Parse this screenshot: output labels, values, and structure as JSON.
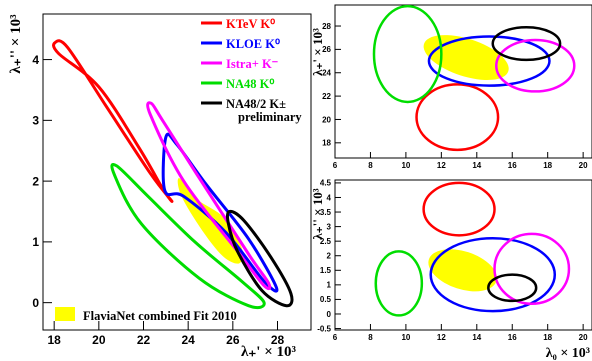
{
  "chart_data": [
    {
      "type": "scatter",
      "panel": "left",
      "xlabel": "λ₊' × 10³",
      "ylabel": "λ₊'' × 10³",
      "xlim": [
        17.5,
        29.5
      ],
      "ylim": [
        -0.45,
        4.75
      ],
      "x_ticks": [
        18,
        20,
        22,
        24,
        26,
        28
      ],
      "y_ticks": [
        0,
        1,
        2,
        3,
        4
      ],
      "grid": false,
      "legend_position": "top-right",
      "legend": [
        {
          "label": "KTeV K⁰",
          "color": "#ff0000"
        },
        {
          "label": "KLOE K⁰",
          "color": "#0000ff"
        },
        {
          "label": "Istra+ K⁻",
          "color": "#ff00ff"
        },
        {
          "label": "NA48 K⁰",
          "color": "#00dd00"
        },
        {
          "label": "NA48/2 K±",
          "color": "#000000"
        },
        {
          "label": "preliminary",
          "color": "#000000"
        }
      ],
      "fill_legend": {
        "label": "FlaviaNet combined Fit  2010",
        "color": "#ffff00"
      },
      "series": [
        {
          "name": "KTeV K⁰",
          "color": "#ff0000",
          "outline": [
            [
              18.04,
              4.28
            ],
            [
              18.6,
              4.2
            ],
            [
              20.3,
              3.25
            ],
            [
              22.3,
              2.13
            ],
            [
              23.25,
              1.68
            ],
            [
              22.9,
              1.85
            ],
            [
              21.8,
              2.55
            ],
            [
              20.0,
              3.55
            ],
            [
              18.2,
              4.1
            ]
          ]
        },
        {
          "name": "KLOE K⁰",
          "color": "#0000ff",
          "outline": [
            [
              23.0,
              2.72
            ],
            [
              23.5,
              2.6
            ],
            [
              24.8,
              1.95
            ],
            [
              26.7,
              1.05
            ],
            [
              27.95,
              0.25
            ],
            [
              27.4,
              0.35
            ],
            [
              25.7,
              1.15
            ],
            [
              23.8,
              1.75
            ],
            [
              22.95,
              1.85
            ]
          ]
        },
        {
          "name": "Istra+ K⁻",
          "color": "#ff00ff",
          "outline": [
            [
              22.35,
              3.28
            ],
            [
              22.85,
              3.0
            ],
            [
              24.5,
              2.05
            ],
            [
              26.7,
              0.8
            ],
            [
              27.6,
              0.32
            ],
            [
              27.4,
              0.28
            ],
            [
              26.2,
              0.85
            ],
            [
              23.8,
              2.0
            ],
            [
              22.3,
              3.1
            ]
          ]
        },
        {
          "name": "NA48 K⁰",
          "color": "#00dd00",
          "outline": [
            [
              20.8,
              2.25
            ],
            [
              22.2,
              1.75
            ],
            [
              24.3,
              1.0
            ],
            [
              26.4,
              0.35
            ],
            [
              27.4,
              0.0
            ],
            [
              26.7,
              -0.05
            ],
            [
              24.5,
              0.4
            ],
            [
              21.9,
              1.3
            ],
            [
              20.7,
              2.1
            ]
          ]
        },
        {
          "name": "NA48/2 K±",
          "color": "#000000",
          "outline": [
            [
              25.85,
              1.5
            ],
            [
              26.5,
              1.35
            ],
            [
              27.7,
              0.75
            ],
            [
              28.6,
              0.15
            ],
            [
              28.4,
              -0.05
            ],
            [
              27.3,
              0.2
            ],
            [
              26.2,
              0.85
            ],
            [
              25.8,
              1.3
            ]
          ]
        },
        {
          "name": "FlaviaNet combined Fit  2010",
          "color": "#ffff00",
          "outline": [
            [
              23.6,
              2.05
            ],
            [
              24.4,
              1.7
            ],
            [
              25.6,
              1.4
            ],
            [
              26.4,
              0.9
            ],
            [
              26.3,
              0.65
            ],
            [
              25.6,
              0.75
            ],
            [
              24.7,
              1.15
            ],
            [
              23.7,
              1.75
            ]
          ]
        }
      ]
    },
    {
      "type": "scatter",
      "panel": "top-right",
      "ylabel": "λ₊' × 10³",
      "xlim": [
        6,
        20.5
      ],
      "ylim": [
        16.7,
        29.8
      ],
      "x_ticks": [
        6,
        8,
        10,
        12,
        14,
        16,
        18,
        20
      ],
      "y_ticks": [
        18,
        20,
        22,
        24,
        26,
        28
      ],
      "series": [
        {
          "name": "KTeV K⁰",
          "color": "#ff0000",
          "center": [
            12.9,
            20.2
          ],
          "radii": [
            2.3,
            2.8
          ]
        },
        {
          "name": "KLOE K⁰",
          "color": "#0000ff",
          "center": [
            14.7,
            25.0
          ],
          "radii": [
            3.4,
            2.1
          ]
        },
        {
          "name": "Istra+ K⁻",
          "color": "#ff00ff",
          "center": [
            17.3,
            24.6
          ],
          "radii": [
            2.2,
            2.2
          ]
        },
        {
          "name": "NA48 K⁰",
          "color": "#00dd00",
          "center": [
            10.1,
            25.6
          ],
          "radii": [
            1.9,
            4.1
          ]
        },
        {
          "name": "NA48/2 K±",
          "color": "#000000",
          "center": [
            16.8,
            26.5
          ],
          "radii": [
            1.9,
            1.4
          ]
        },
        {
          "name": "FlaviaNet combined Fit  2010",
          "color": "#ffff00",
          "center": [
            13.4,
            25.3
          ],
          "radii": [
            2.5,
            1.6
          ]
        }
      ]
    },
    {
      "type": "scatter",
      "panel": "bottom-right",
      "xlabel": "λ₀ × 10³",
      "ylabel": "λ₊'' × 10³",
      "xlim": [
        6,
        20.5
      ],
      "ylim": [
        -0.55,
        4.6
      ],
      "x_ticks": [
        6,
        8,
        10,
        12,
        14,
        16,
        18,
        20
      ],
      "y_ticks": [
        -0.5,
        0,
        0.5,
        1,
        1.5,
        2,
        2.5,
        3,
        3.5,
        4,
        4.5
      ],
      "y_tick_labels": [
        "-0.5",
        "0",
        "0.5",
        "1",
        "1.5",
        "2",
        "2.5",
        "3",
        "3.5",
        "4",
        "4.5"
      ],
      "series": [
        {
          "name": "KTeV K⁰",
          "color": "#ff0000",
          "center": [
            13.0,
            3.6
          ],
          "radii": [
            2.0,
            0.9
          ]
        },
        {
          "name": "KLOE K⁰",
          "color": "#0000ff",
          "center": [
            14.9,
            1.35
          ],
          "radii": [
            3.5,
            1.25
          ]
        },
        {
          "name": "Istra+ K⁻",
          "color": "#ff00ff",
          "center": [
            17.1,
            1.55
          ],
          "radii": [
            2.1,
            1.2
          ]
        },
        {
          "name": "NA48 K⁰",
          "color": "#00dd00",
          "center": [
            9.6,
            1.05
          ],
          "radii": [
            1.3,
            1.1
          ]
        },
        {
          "name": "NA48/2 K±",
          "color": "#000000",
          "center": [
            16.0,
            0.9
          ],
          "radii": [
            1.35,
            0.45
          ]
        },
        {
          "name": "FlaviaNet combined Fit  2010",
          "color": "#ffff00",
          "center": [
            13.2,
            1.5
          ],
          "radii": [
            2.0,
            0.65
          ]
        }
      ]
    }
  ],
  "labels": {
    "left_ylabel": "λ₊'' × 10³",
    "left_xlabel": "λ₊' × 10³",
    "tr_ylabel": "λ₊' × 10³",
    "br_ylabel": "λ₊'' × 10³",
    "br_xlabel": "λ₀ × 10³"
  }
}
